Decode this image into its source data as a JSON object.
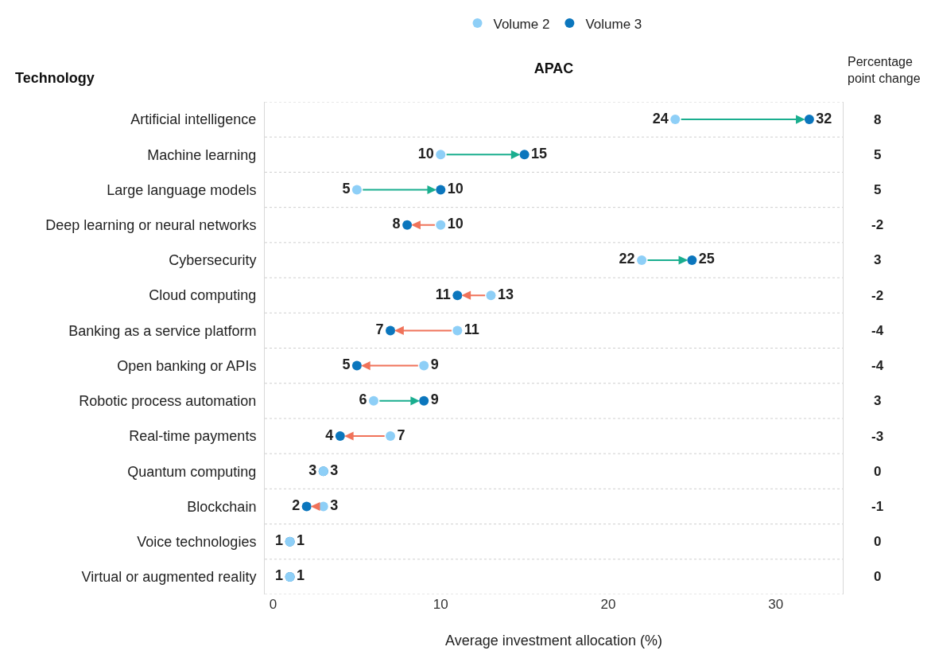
{
  "chart_data": {
    "type": "scatter",
    "orientation": "horizontal",
    "title": "APAC",
    "xlabel": "Average investment allocation (%)",
    "ylabel": "Technology",
    "categories": [
      "Artificial intelligence",
      "Machine learning",
      "Large language models",
      "Deep learning or neural networks",
      "Cybersecurity",
      "Cloud computing",
      "Banking as a service platform",
      "Open banking or APIs",
      "Robotic process automation",
      "Real-time payments",
      "Quantum computing",
      "Blockchain",
      "Voice technologies",
      "Virtual or augmented reality"
    ],
    "series": [
      {
        "name": "Volume 2",
        "color": "#8ecff7",
        "values": [
          24,
          10,
          5,
          10,
          22,
          13,
          11,
          9,
          6,
          7,
          3,
          3,
          1,
          1
        ]
      },
      {
        "name": "Volume 3",
        "color": "#0b76bd",
        "values": [
          32,
          15,
          10,
          8,
          25,
          11,
          7,
          5,
          9,
          4,
          3,
          2,
          1,
          1
        ]
      }
    ],
    "colors": [
      "#1aae8f",
      "#1aae8f",
      "#1aae8f",
      "#f0735a",
      "#1aae8f",
      "#f0735a",
      "#f0735a",
      "#f0735a",
      "#1aae8f",
      "#f0735a",
      null,
      "#f0735a",
      null,
      null
    ],
    "annotations": [
      "Percentage point change",
      "8",
      "5",
      "5",
      "-2",
      "3",
      "-2",
      "-4",
      "-4",
      "3",
      "-3",
      "0",
      "-1",
      "0",
      "0"
    ],
    "xlim": [
      -0.5,
      34
    ],
    "xticks": [
      0,
      10,
      20,
      30
    ],
    "data_labels": true,
    "marker": "circle",
    "grid": "y",
    "legend": "top"
  }
}
